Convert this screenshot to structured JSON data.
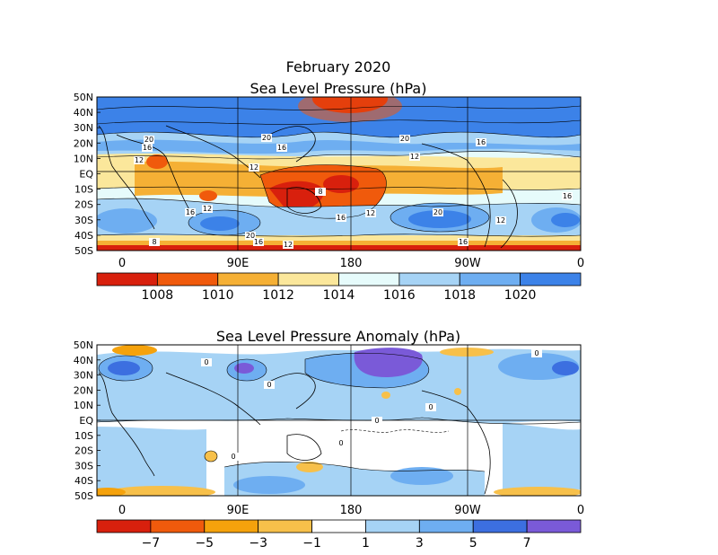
{
  "panels": [
    {
      "title_line1": "February 2020",
      "title_line2": "Sea Level Pressure (hPa)",
      "lat_labels": [
        "50N",
        "40N",
        "30N",
        "20N",
        "10N",
        "EQ",
        "10S",
        "20S",
        "30S",
        "40S",
        "50S"
      ],
      "lon_labels": [
        "0",
        "90E",
        "180",
        "90W",
        "0"
      ],
      "colorbar": {
        "colors": [
          "#d8200d",
          "#f05a0c",
          "#f5b035",
          "#fbe79b",
          "#e6fbfb",
          "#a6d3f5",
          "#6eaef1",
          "#3c82e8"
        ],
        "labels": [
          "1008",
          "1010",
          "1012",
          "1014",
          "1016",
          "1018",
          "1020"
        ]
      },
      "contour_labels": [
        "20",
        "16",
        "12",
        "20",
        "16",
        "12",
        "12",
        "8",
        "16",
        "12",
        "20",
        "16",
        "16",
        "12",
        "8",
        "20",
        "16",
        "12",
        "16",
        "16",
        "12",
        "20"
      ]
    },
    {
      "title_line1": "Sea Level Pressure Anomaly (hPa)",
      "lat_labels": [
        "50N",
        "40N",
        "30N",
        "20N",
        "10N",
        "EQ",
        "10S",
        "20S",
        "30S",
        "40S",
        "50S"
      ],
      "lon_labels": [
        "0",
        "90E",
        "180",
        "90W",
        "0"
      ],
      "colorbar": {
        "colors": [
          "#d8200d",
          "#f05a0c",
          "#f5a20c",
          "#f7c04a",
          "#ffffff",
          "#a6d3f5",
          "#6eaef1",
          "#3c6fe0",
          "#7a5ad8"
        ],
        "labels": [
          "−7",
          "−5",
          "−3",
          "−1",
          "1",
          "3",
          "5",
          "7"
        ]
      },
      "contour_labels": [
        "0",
        "0",
        "0",
        "0",
        "0",
        "0",
        "0"
      ]
    }
  ]
}
